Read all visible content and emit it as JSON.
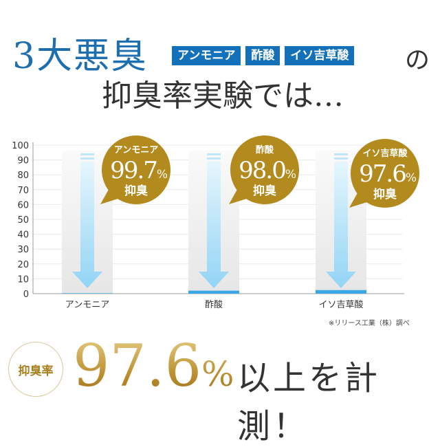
{
  "header": {
    "title_main": "3大悪臭",
    "tags": [
      "アンモニア",
      "酢酸",
      "イソ吉草酸"
    ],
    "title_particle": "の",
    "subtitle": "抑臭率実験では…"
  },
  "chart_data": {
    "type": "bar",
    "categories": [
      "アンモニア",
      "酢酸",
      "イソ吉草酸"
    ],
    "values": [
      0.3,
      2.0,
      2.4
    ],
    "ylim": [
      0,
      100
    ],
    "yticks": [
      0,
      10,
      20,
      30,
      40,
      50,
      60,
      70,
      80,
      90,
      100
    ],
    "grid": true,
    "bubbles": [
      {
        "name": "アンモニア",
        "value": "99.7",
        "unit": "%",
        "label": "抑臭"
      },
      {
        "name": "酢酸",
        "value": "98.0",
        "unit": "%",
        "label": "抑臭"
      },
      {
        "name": "イソ吉草酸",
        "value": "97.6",
        "unit": "%",
        "label": "抑臭"
      }
    ],
    "colors": {
      "bar": "#3aa7e6",
      "arrow": "#a9ddf7",
      "bubble": "#b38a1e"
    }
  },
  "note": "※リリース工業（株）調べ",
  "footer": {
    "badge": "抑臭率",
    "value": "97.6",
    "unit": "%",
    "text": "以上を計測！"
  }
}
